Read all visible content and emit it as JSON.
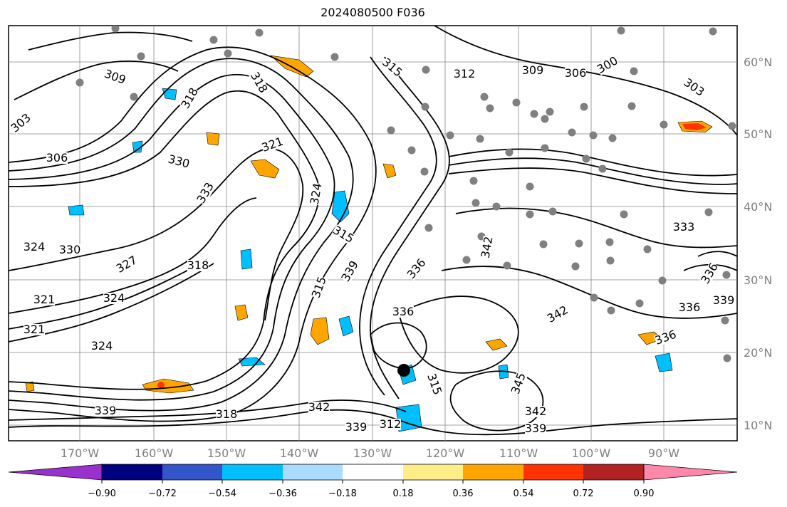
{
  "title": "2024080500 F036",
  "map": {
    "lat_labels": [
      "60°N",
      "50°N",
      "40°N",
      "30°N",
      "20°N",
      "10°N"
    ],
    "lon_labels": [
      "170°W",
      "160°W",
      "150°W",
      "140°W",
      "130°W",
      "120°W",
      "110°W",
      "100°W",
      "90°W"
    ],
    "contour_labels": [
      {
        "text": "309"
      },
      {
        "text": "318"
      },
      {
        "text": "318"
      },
      {
        "text": "315"
      },
      {
        "text": "312"
      },
      {
        "text": "309"
      },
      {
        "text": "306"
      },
      {
        "text": "300"
      },
      {
        "text": "303"
      },
      {
        "text": "303"
      },
      {
        "text": "306"
      },
      {
        "text": "330"
      },
      {
        "text": "321"
      },
      {
        "text": "324"
      },
      {
        "text": "333"
      },
      {
        "text": "324"
      },
      {
        "text": "330"
      },
      {
        "text": "327"
      },
      {
        "text": "318"
      },
      {
        "text": "315"
      },
      {
        "text": "315"
      },
      {
        "text": "324"
      },
      {
        "text": "321"
      },
      {
        "text": "321"
      },
      {
        "text": "336"
      },
      {
        "text": "324"
      },
      {
        "text": "336"
      },
      {
        "text": "336"
      },
      {
        "text": "342"
      },
      {
        "text": "339"
      },
      {
        "text": "342"
      },
      {
        "text": "345"
      },
      {
        "text": "342"
      },
      {
        "text": "339"
      },
      {
        "text": "336"
      },
      {
        "text": "333"
      },
      {
        "text": "336"
      },
      {
        "text": "339"
      },
      {
        "text": "339"
      },
      {
        "text": "342"
      },
      {
        "text": "318"
      },
      {
        "text": "339"
      },
      {
        "text": "312"
      },
      {
        "text": "315"
      }
    ]
  },
  "colorbar": {
    "ticks": [
      "−0.90",
      "−0.72",
      "−0.54",
      "−0.36",
      "−0.18",
      "0.18",
      "0.36",
      "0.54",
      "0.72",
      "0.90"
    ],
    "colors": {
      "under": "#9932cc",
      "bins": [
        "#000080",
        "#3355cc",
        "#00bfff",
        "#aadcff",
        "#ffffff",
        "#ffee88",
        "#ffa500",
        "#ff3300",
        "#b22222"
      ],
      "over": "#ff88aa"
    }
  }
}
